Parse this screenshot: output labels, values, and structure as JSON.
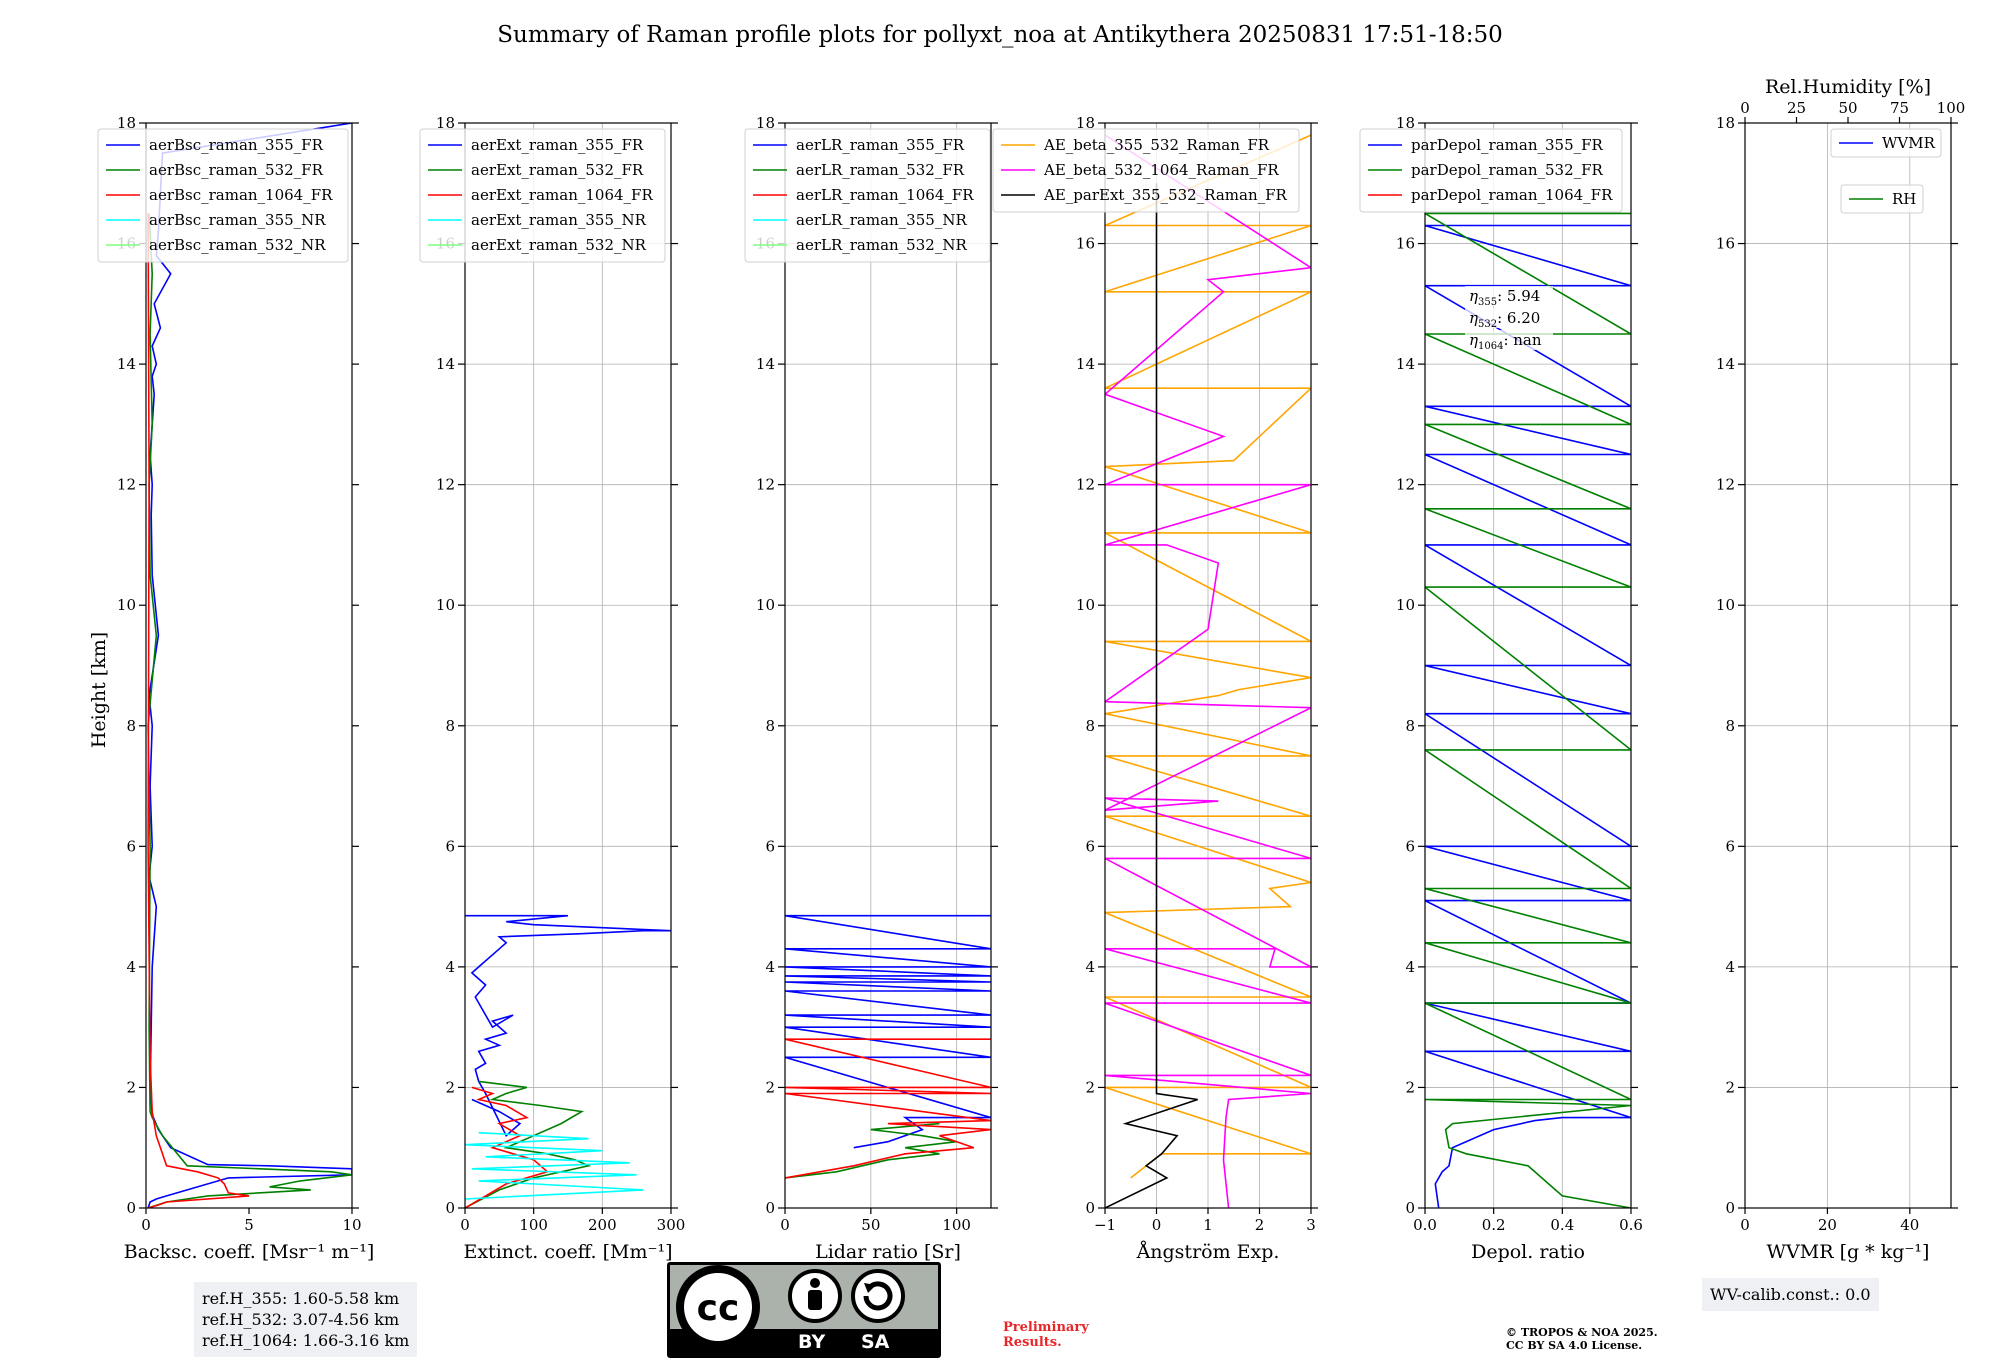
{
  "title": "Summary of Raman profile plots for pollyxt_noa at Antikythera 20250831 17:51-18:50",
  "y_axis_label": "Height [km]",
  "chart_data": [
    {
      "type": "line",
      "id": "bsc",
      "xlabel": "Backsc. coeff. [Msr⁻¹ m⁻¹]",
      "xlim": [
        0,
        10
      ],
      "ylim": [
        0,
        18
      ],
      "xticks": [
        0,
        5,
        10
      ],
      "yticks": [
        0,
        2,
        4,
        6,
        8,
        10,
        12,
        14,
        16,
        18
      ],
      "grid": false,
      "legend_position": "upper-right",
      "series": [
        {
          "name": "aerBsc_raman_355_FR",
          "color": "#0000ff",
          "x": [
            0.1,
            0.2,
            0.5,
            1.0,
            2.0,
            4.0,
            10.0,
            10.0,
            6.0,
            3.0,
            1.2,
            0.6,
            0.3,
            0.2,
            0.25,
            0.3,
            0.5,
            0.15,
            0.3,
            0.2,
            0.3,
            0.15,
            0.6,
            0.3,
            0.25,
            0.3,
            0.2,
            0.3,
            0.4,
            0.3,
            0.5,
            0.3,
            0.7,
            0.4,
            1.2,
            0.5,
            0.6,
            0.8,
            10.0
          ],
          "y": [
            0.0,
            0.1,
            0.15,
            0.2,
            0.3,
            0.5,
            0.55,
            0.65,
            0.7,
            0.72,
            1.0,
            1.3,
            1.55,
            2.0,
            3.0,
            4.0,
            5.0,
            5.5,
            6.0,
            7.0,
            8.0,
            8.5,
            9.5,
            10.5,
            11.5,
            12.0,
            12.5,
            13.0,
            13.5,
            13.8,
            14.0,
            14.3,
            14.6,
            15.0,
            15.5,
            15.8,
            16.2,
            17.5,
            18.0
          ]
        },
        {
          "name": "aerBsc_raman_532_FR",
          "color": "#008000",
          "x": [
            0.1,
            1.0,
            3.0,
            8.0,
            6.0,
            7.5,
            10.0,
            9.0,
            2.0,
            0.8,
            0.3,
            0.2,
            0.15,
            0.2,
            0.1,
            0.5,
            0.2,
            0.15,
            0.3,
            0.2,
            0.3,
            0.15
          ],
          "y": [
            0.0,
            0.1,
            0.2,
            0.3,
            0.35,
            0.45,
            0.55,
            0.6,
            0.7,
            1.2,
            1.5,
            1.6,
            3.0,
            6.0,
            8.0,
            9.5,
            10.5,
            12.0,
            13.0,
            14.5,
            15.5,
            16.5
          ]
        },
        {
          "name": "aerBsc_raman_1064_FR",
          "color": "#ff0000",
          "x": [
            0.1,
            0.6,
            1.0,
            5.0,
            4.0,
            3.8,
            3.5,
            2.5,
            1.0,
            0.5,
            0.3,
            0.2,
            0.1,
            0.15,
            0.1
          ],
          "y": [
            0.0,
            0.05,
            0.1,
            0.2,
            0.25,
            0.4,
            0.5,
            0.6,
            0.7,
            1.2,
            1.6,
            2.5,
            6.0,
            12.0,
            16.5
          ]
        },
        {
          "name": "aerBsc_raman_355_NR",
          "color": "#00ffff",
          "x": [],
          "y": []
        },
        {
          "name": "aerBsc_raman_532_NR",
          "color": "#7fff7f",
          "x": [],
          "y": []
        }
      ]
    },
    {
      "type": "line",
      "id": "ext",
      "xlabel": "Extinct. coeff. [Mm⁻¹]",
      "xlim": [
        0,
        300
      ],
      "ylim": [
        0,
        18
      ],
      "xticks": [
        0,
        100,
        200,
        300
      ],
      "yticks": [
        0,
        2,
        4,
        6,
        8,
        10,
        12,
        14,
        16,
        18
      ],
      "grid": true,
      "legend_position": "upper-right",
      "series": [
        {
          "name": "aerExt_raman_355_FR",
          "color": "#0000ff",
          "x": [
            10,
            50,
            80,
            60,
            30,
            20,
            15,
            30,
            20,
            50,
            30,
            60,
            40,
            70,
            40,
            25,
            15,
            30,
            10,
            20,
            40,
            60,
            50,
            170,
            260,
            300,
            200,
            100,
            60,
            150,
            0
          ],
          "y": [
            1.8,
            1.6,
            1.4,
            1.2,
            1.9,
            2.1,
            2.3,
            2.4,
            2.6,
            2.7,
            2.8,
            2.9,
            3.1,
            3.2,
            3.0,
            3.3,
            3.5,
            3.7,
            3.9,
            4.0,
            4.2,
            4.4,
            4.5,
            4.55,
            4.6,
            4.6,
            4.65,
            4.7,
            4.75,
            4.85,
            4.85
          ]
        },
        {
          "name": "aerExt_raman_532_FR",
          "color": "#008000",
          "x": [
            0,
            50,
            100,
            180,
            160,
            120,
            60,
            100,
            140,
            170,
            110,
            40,
            60,
            90,
            20
          ],
          "y": [
            0.0,
            0.3,
            0.5,
            0.7,
            0.8,
            0.9,
            1.0,
            1.2,
            1.4,
            1.6,
            1.7,
            1.8,
            1.9,
            2.0,
            2.1
          ]
        },
        {
          "name": "aerExt_raman_1064_FR",
          "color": "#ff0000",
          "x": [
            0,
            60,
            120,
            100,
            40,
            80,
            50,
            90,
            60,
            20,
            40,
            10
          ],
          "y": [
            0.0,
            0.4,
            0.6,
            0.8,
            1.0,
            1.2,
            1.4,
            1.5,
            1.7,
            1.8,
            1.9,
            2.0
          ]
        },
        {
          "name": "aerExt_raman_355_NR",
          "color": "#00ffff",
          "x": [
            0,
            260,
            20,
            250,
            10,
            240,
            30,
            200,
            0,
            180,
            20
          ],
          "y": [
            0.15,
            0.3,
            0.45,
            0.55,
            0.65,
            0.75,
            0.85,
            0.95,
            1.05,
            1.15,
            1.25
          ]
        },
        {
          "name": "aerExt_raman_532_NR",
          "color": "#7fff7f",
          "x": [],
          "y": []
        }
      ]
    },
    {
      "type": "line",
      "id": "lr",
      "xlabel": "Lidar ratio [Sr]",
      "xlim": [
        0,
        120
      ],
      "ylim": [
        0,
        18
      ],
      "xticks": [
        0,
        50,
        100
      ],
      "yticks": [
        0,
        2,
        4,
        6,
        8,
        10,
        12,
        14,
        16,
        18
      ],
      "grid": true,
      "legend_position": "upper-right",
      "series": [
        {
          "name": "aerLR_raman_355_FR",
          "color": "#0000ff",
          "x": [
            40,
            60,
            80,
            70,
            120,
            0,
            120,
            0,
            120,
            0,
            120,
            0,
            120,
            0,
            120,
            0,
            120,
            0,
            120,
            0,
            120,
            0,
            120
          ],
          "y": [
            1.0,
            1.1,
            1.3,
            1.5,
            1.5,
            2.5,
            2.5,
            3.0,
            3.0,
            3.2,
            3.2,
            3.6,
            3.6,
            3.75,
            3.75,
            3.85,
            3.85,
            4.0,
            4.0,
            4.3,
            4.3,
            4.85,
            4.85
          ]
        },
        {
          "name": "aerLR_raman_532_FR",
          "color": "#008000",
          "x": [
            0,
            30,
            60,
            90,
            70,
            100,
            80,
            50,
            90
          ],
          "y": [
            0.5,
            0.6,
            0.8,
            0.9,
            1.0,
            1.1,
            1.2,
            1.3,
            1.4
          ]
        },
        {
          "name": "aerLR_raman_1064_FR",
          "color": "#ff0000",
          "x": [
            0,
            40,
            70,
            110,
            90,
            120,
            60,
            120,
            0,
            120,
            0,
            120,
            0,
            120
          ],
          "y": [
            0.5,
            0.7,
            0.9,
            1.0,
            1.2,
            1.3,
            1.4,
            1.45,
            1.9,
            1.9,
            2.0,
            2.0,
            2.8,
            2.8
          ]
        },
        {
          "name": "aerLR_raman_355_NR",
          "color": "#00ffff",
          "x": [],
          "y": []
        },
        {
          "name": "aerLR_raman_532_NR",
          "color": "#7fff7f",
          "x": [],
          "y": []
        }
      ]
    },
    {
      "type": "line",
      "id": "ae",
      "xlabel": "Ångström Exp.",
      "xlim": [
        -1,
        3
      ],
      "ylim": [
        0,
        18
      ],
      "xticks": [
        -1,
        0,
        1,
        2,
        3
      ],
      "yticks": [
        0,
        2,
        4,
        6,
        8,
        10,
        12,
        14,
        16,
        18
      ],
      "grid": true,
      "legend_position": "upper-right",
      "series": [
        {
          "name": "AE_beta_355_532_Raman_FR",
          "color": "#ffa500",
          "x": [
            -0.5,
            -0.2,
            0.1,
            3,
            -1,
            3,
            -1,
            3,
            -1,
            2.6,
            2.2,
            3,
            -1,
            3,
            -1,
            3,
            -1,
            1.2,
            1.6,
            3,
            -1,
            3,
            -1,
            3,
            -1,
            1.5,
            3,
            -1,
            3,
            -1,
            3,
            -1,
            3
          ],
          "y": [
            0.5,
            0.7,
            0.9,
            0.9,
            2.0,
            2.0,
            3.5,
            3.5,
            4.9,
            5.0,
            5.3,
            5.4,
            6.5,
            6.5,
            7.5,
            7.5,
            8.2,
            8.5,
            8.6,
            8.8,
            9.4,
            9.4,
            11.2,
            11.2,
            12.3,
            12.4,
            13.6,
            13.6,
            15.2,
            15.2,
            16.3,
            16.3,
            17.8
          ]
        },
        {
          "name": "AE_beta_532_1064_Raman_FR",
          "color": "#ff00ff",
          "x": [
            1.4,
            1.3,
            1.35,
            1.4,
            3,
            -1,
            3,
            -1,
            3,
            -1,
            2.3,
            2.2,
            3,
            -1,
            3,
            -1,
            1.2,
            -1,
            3,
            -1,
            1.0,
            1.2,
            0.2,
            -1,
            3,
            -1,
            1.3,
            -1,
            1.3,
            1.0,
            3,
            -1
          ],
          "y": [
            0.0,
            0.8,
            1.5,
            1.8,
            1.9,
            2.2,
            2.2,
            3.4,
            3.4,
            4.3,
            4.3,
            4.0,
            4.0,
            5.8,
            5.8,
            6.8,
            6.75,
            6.6,
            8.3,
            8.4,
            9.6,
            10.7,
            11.0,
            11.0,
            12.0,
            12.0,
            12.8,
            13.5,
            15.2,
            15.4,
            15.6,
            17.8
          ]
        },
        {
          "name": "AE_parExt_355_532_Raman_FR",
          "color": "#000000",
          "x": [
            -1,
            0.2,
            -0.2,
            0.1,
            0.4,
            -0.6,
            0.8,
            0,
            0,
            0,
            0
          ],
          "y": [
            0.0,
            0.5,
            0.7,
            0.9,
            1.2,
            1.4,
            1.8,
            1.9,
            5.2,
            10,
            17.0
          ]
        }
      ]
    },
    {
      "type": "line",
      "id": "depol",
      "xlabel": "Depol. ratio",
      "xlim": [
        0,
        0.6
      ],
      "ylim": [
        0,
        18
      ],
      "xticks": [
        0.0,
        0.2,
        0.4,
        0.6
      ],
      "yticks": [
        0,
        2,
        4,
        6,
        8,
        10,
        12,
        14,
        16,
        18
      ],
      "grid": true,
      "legend_position": "upper-right",
      "series": [
        {
          "name": "parDepol_raman_355_FR",
          "color": "#0000ff",
          "x": [
            0.04,
            0.03,
            0.05,
            0.07,
            0.08,
            0.2,
            0.32,
            0.4,
            0.6,
            0,
            0.6,
            0,
            0.6,
            0,
            0.6,
            0,
            0.6,
            0,
            0.6,
            0,
            0.6,
            0,
            0.6,
            0,
            0.6,
            0,
            0.6,
            0,
            0.6,
            0,
            0.6
          ],
          "y": [
            0.0,
            0.4,
            0.6,
            0.7,
            1.0,
            1.3,
            1.45,
            1.5,
            1.5,
            2.6,
            2.6,
            3.4,
            3.4,
            5.1,
            5.1,
            6.0,
            6.0,
            8.2,
            8.2,
            9.0,
            9.0,
            11.0,
            11.0,
            12.5,
            12.5,
            13.3,
            13.3,
            15.3,
            15.3,
            16.3,
            16.3
          ]
        },
        {
          "name": "parDepol_raman_532_FR",
          "color": "#008000",
          "x": [
            0.6,
            0.4,
            0.3,
            0.12,
            0.07,
            0.06,
            0.08,
            0.6,
            0,
            0.6,
            0,
            0.6,
            0,
            0.6,
            0,
            0.6,
            0,
            0.6,
            0,
            0.6,
            0,
            0.6,
            0,
            0.6,
            0,
            0.6,
            0,
            0.6
          ],
          "y": [
            0.0,
            0.2,
            0.7,
            0.9,
            1.0,
            1.3,
            1.4,
            1.7,
            1.8,
            1.8,
            3.4,
            3.4,
            4.4,
            4.4,
            5.3,
            5.3,
            7.6,
            7.6,
            10.3,
            10.3,
            11.6,
            11.6,
            13.0,
            13.0,
            14.5,
            14.5,
            16.5,
            16.5
          ]
        },
        {
          "name": "parDepol_raman_1064_FR",
          "color": "#ff0000",
          "x": [],
          "y": []
        }
      ],
      "annotations": [
        {
          "label": "η",
          "sub": "355",
          "value": ": 5.94"
        },
        {
          "label": "η",
          "sub": "532",
          "value": ": 6.20"
        },
        {
          "label": "η",
          "sub": "1064",
          "value": ": nan"
        }
      ]
    },
    {
      "type": "line",
      "id": "wv",
      "xlabel": "WVMR [g * kg⁻¹]",
      "xlim": [
        0,
        50
      ],
      "ylim": [
        0,
        18
      ],
      "xticks": [
        0,
        20,
        40
      ],
      "yticks": [
        0,
        2,
        4,
        6,
        8,
        10,
        12,
        14,
        16,
        18
      ],
      "grid": true,
      "legend_position": "upper-right",
      "top_xlabel": "Rel.Humidity [%]",
      "top_xlim": [
        0,
        100
      ],
      "top_xticks": [
        0,
        25,
        50,
        75,
        100
      ],
      "series": [
        {
          "name": "WVMR",
          "color": "#0000ff",
          "x": [],
          "y": []
        },
        {
          "name": "RH",
          "color": "#008000",
          "x": [],
          "y": []
        }
      ]
    }
  ],
  "footer": {
    "ref_lines": [
      "ref.H_355: 1.60-5.58 km",
      "ref.H_532: 3.07-4.56 km",
      "ref.H_1064: 1.66-3.16 km"
    ],
    "license_badge": {
      "by": "BY",
      "sa": "SA"
    },
    "preliminary": [
      "Preliminary",
      "Results."
    ],
    "copyright": [
      "© TROPOS & NOA 2025.",
      "CC BY SA 4.0 License."
    ],
    "wv_calib": "WV-calib.const.: 0.0"
  }
}
